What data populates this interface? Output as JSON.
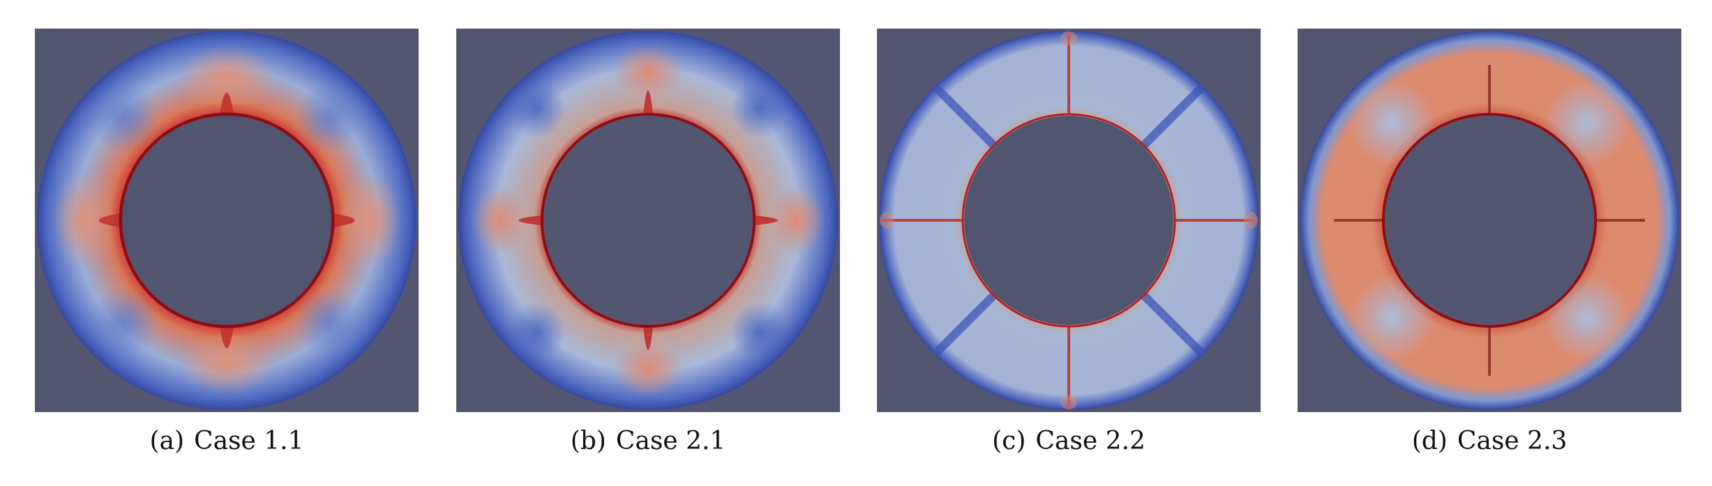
{
  "figure": {
    "panels": [
      {
        "label": "(a)",
        "caption": "Case 1.1"
      },
      {
        "label": "(b)",
        "caption": "Case 2.1"
      },
      {
        "label": "(c)",
        "caption": "Case 2.2"
      },
      {
        "label": "(d)",
        "caption": "Case 2.3"
      }
    ],
    "colors": {
      "background": "#525570",
      "cool": "#3b4cc0",
      "neutral": "#dddddd",
      "warm": "#b40426",
      "hot": "#8e0d12"
    }
  }
}
